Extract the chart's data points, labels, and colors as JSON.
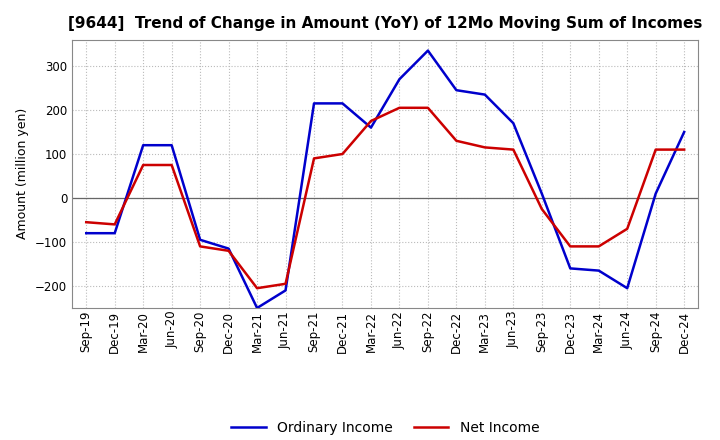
{
  "title": "[9644]  Trend of Change in Amount (YoY) of 12Mo Moving Sum of Incomes",
  "ylabel": "Amount (million yen)",
  "x_labels": [
    "Sep-19",
    "Dec-19",
    "Mar-20",
    "Jun-20",
    "Sep-20",
    "Dec-20",
    "Mar-21",
    "Jun-21",
    "Sep-21",
    "Dec-21",
    "Mar-22",
    "Jun-22",
    "Sep-22",
    "Dec-22",
    "Mar-23",
    "Jun-23",
    "Sep-23",
    "Dec-23",
    "Mar-24",
    "Jun-24",
    "Sep-24",
    "Dec-24"
  ],
  "ordinary_income": [
    -80,
    -80,
    120,
    120,
    -95,
    -115,
    -250,
    -210,
    215,
    215,
    160,
    270,
    335,
    245,
    235,
    170,
    10,
    -160,
    -165,
    -205,
    10,
    150
  ],
  "net_income": [
    -55,
    -60,
    75,
    75,
    -110,
    -120,
    -205,
    -195,
    90,
    100,
    175,
    205,
    205,
    130,
    115,
    110,
    -25,
    -110,
    -110,
    -70,
    110,
    110
  ],
  "ordinary_income_color": "#0000CC",
  "net_income_color": "#CC0000",
  "ylim": [
    -250,
    360
  ],
  "yticks": [
    -200,
    -100,
    0,
    100,
    200,
    300
  ],
  "grid_color": "#bbbbbb",
  "background_color": "#ffffff",
  "legend_labels": [
    "Ordinary Income",
    "Net Income"
  ],
  "line_width": 1.8,
  "title_fontsize": 11,
  "axis_label_fontsize": 9,
  "tick_fontsize": 8.5,
  "legend_fontsize": 10
}
